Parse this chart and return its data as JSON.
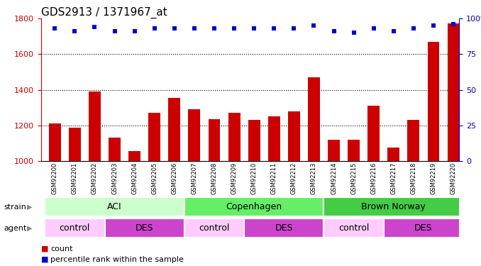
{
  "title": "GDS2913 / 1371967_at",
  "samples": [
    "GSM92200",
    "GSM92201",
    "GSM92202",
    "GSM92203",
    "GSM92204",
    "GSM92205",
    "GSM92206",
    "GSM92207",
    "GSM92208",
    "GSM92209",
    "GSM92210",
    "GSM92211",
    "GSM92212",
    "GSM92213",
    "GSM92214",
    "GSM92215",
    "GSM92216",
    "GSM92217",
    "GSM92218",
    "GSM92219",
    "GSM92220"
  ],
  "counts": [
    1210,
    1185,
    1390,
    1130,
    1055,
    1270,
    1355,
    1290,
    1235,
    1270,
    1230,
    1250,
    1280,
    1470,
    1120,
    1120,
    1310,
    1075,
    1230,
    1670,
    1775
  ],
  "percentiles": [
    93,
    91,
    94,
    91,
    91,
    93,
    93,
    93,
    93,
    93,
    93,
    93,
    93,
    95,
    91,
    90,
    93,
    91,
    93,
    95,
    96
  ],
  "bar_color": "#cc0000",
  "dot_color": "#0000cc",
  "ylim_left": [
    1000,
    1800
  ],
  "ylim_right": [
    0,
    100
  ],
  "yticks_left": [
    1000,
    1200,
    1400,
    1600,
    1800
  ],
  "yticks_right": [
    0,
    25,
    50,
    75,
    100
  ],
  "grid_values": [
    1200,
    1400,
    1600
  ],
  "strain_groups": [
    {
      "label": "ACI",
      "start": 0,
      "end": 6,
      "color": "#ccffcc"
    },
    {
      "label": "Copenhagen",
      "start": 7,
      "end": 13,
      "color": "#66ee66"
    },
    {
      "label": "Brown Norway",
      "start": 14,
      "end": 20,
      "color": "#44cc44"
    }
  ],
  "agent_groups": [
    {
      "label": "control",
      "start": 0,
      "end": 2,
      "color": "#ffccff"
    },
    {
      "label": "DES",
      "start": 3,
      "end": 6,
      "color": "#cc44cc"
    },
    {
      "label": "control",
      "start": 7,
      "end": 9,
      "color": "#ffccff"
    },
    {
      "label": "DES",
      "start": 10,
      "end": 13,
      "color": "#cc44cc"
    },
    {
      "label": "control",
      "start": 14,
      "end": 16,
      "color": "#ffccff"
    },
    {
      "label": "DES",
      "start": 17,
      "end": 20,
      "color": "#cc44cc"
    }
  ],
  "legend_count_color": "#cc0000",
  "legend_dot_color": "#0000cc",
  "background_color": "#ffffff",
  "tick_color_left": "#cc0000",
  "tick_color_right": "#0000cc",
  "title_fontsize": 11,
  "axis_fontsize": 8,
  "label_fontsize": 9,
  "bar_width": 0.6,
  "xtick_bg_color": "#d8d8d8",
  "xlim": [
    -0.7,
    20.3
  ]
}
